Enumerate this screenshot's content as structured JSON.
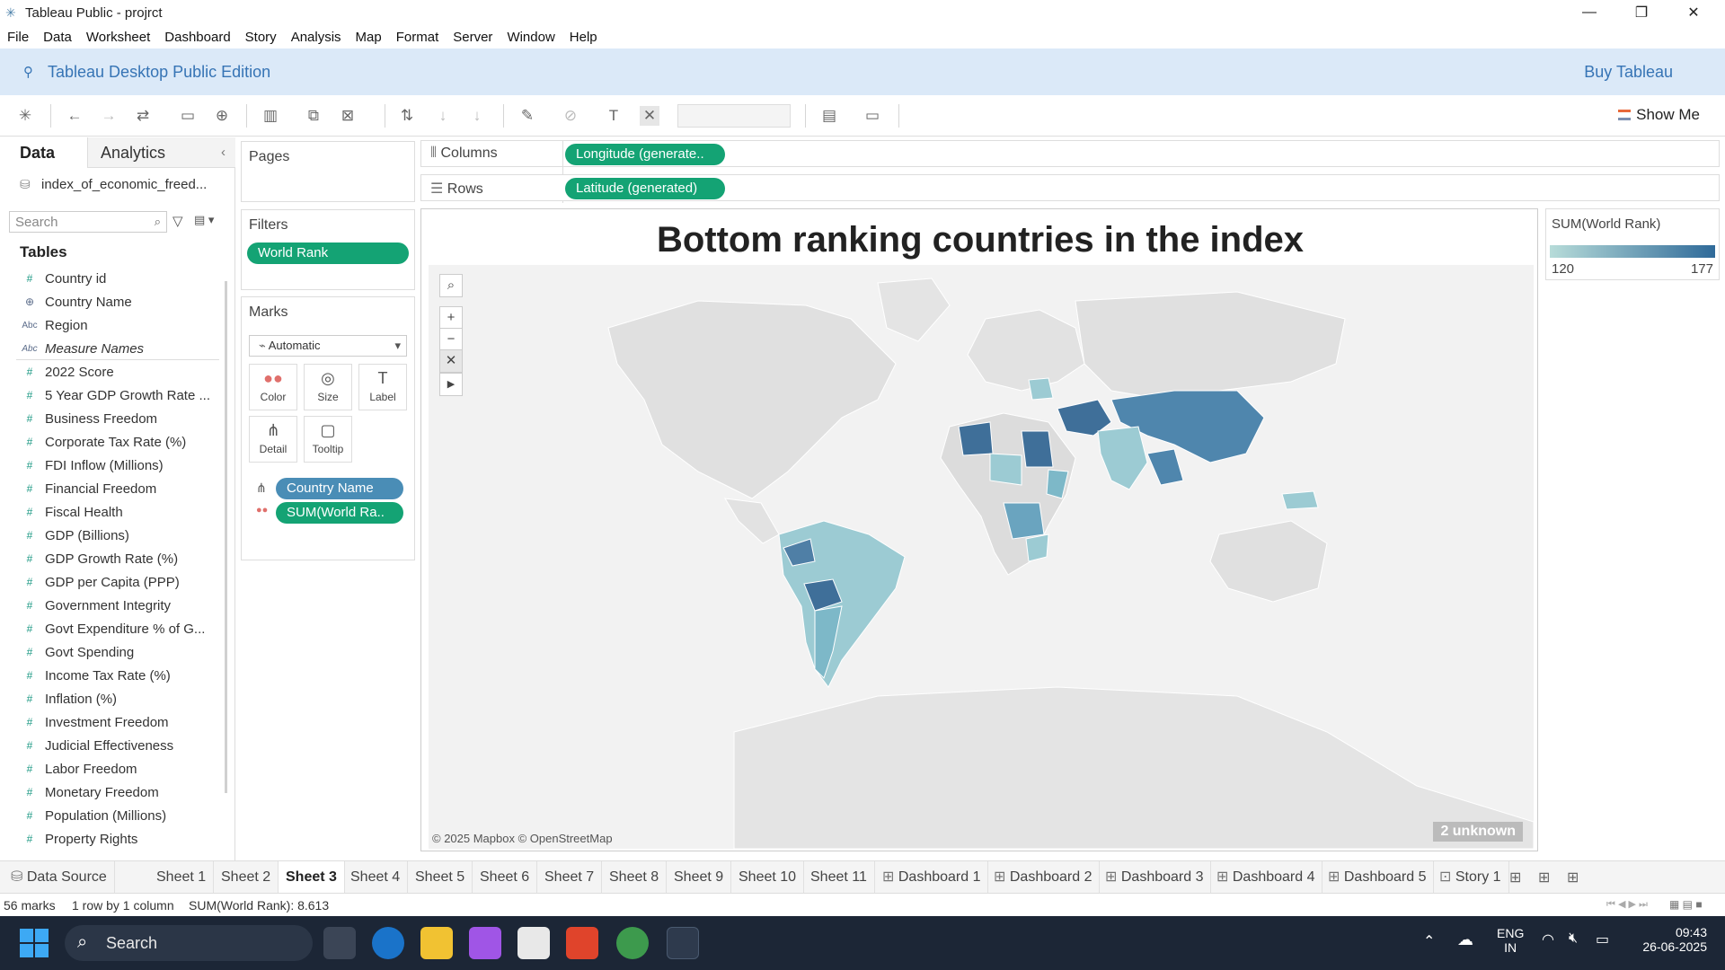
{
  "window": {
    "title": "Tableau Public - projrct"
  },
  "menu": [
    "File",
    "Data",
    "Worksheet",
    "Dashboard",
    "Story",
    "Analysis",
    "Map",
    "Format",
    "Server",
    "Window",
    "Help"
  ],
  "banner": {
    "edition": "Tableau Desktop Public Edition",
    "buy": "Buy Tableau"
  },
  "toolbar": {
    "show_me": "Show Me"
  },
  "datapane": {
    "tabs": [
      "Data",
      "Analytics"
    ],
    "source": "index_of_economic_freed...",
    "search_placeholder": "Search",
    "tables_label": "Tables",
    "dimensions": [
      {
        "icon": "hash",
        "name": "Country id"
      },
      {
        "icon": "globe",
        "name": "Country Name"
      },
      {
        "icon": "abc",
        "name": "Region"
      },
      {
        "icon": "abc",
        "name": "Measure Names"
      }
    ],
    "measures": [
      "2022 Score",
      "5 Year GDP Growth Rate ...",
      "Business Freedom",
      "Corporate Tax Rate (%)",
      "FDI Inflow (Millions)",
      "Financial Freedom",
      "Fiscal Health",
      "GDP (Billions)",
      "GDP Growth Rate (%)",
      "GDP per Capita (PPP)",
      "Government Integrity",
      "Govt Expenditure % of G...",
      "Govt Spending",
      "Income Tax Rate (%)",
      "Inflation (%)",
      "Investment Freedom",
      "Judicial Effectiveness",
      "Labor Freedom",
      "Monetary Freedom",
      "Population (Millions)",
      "Property Rights"
    ]
  },
  "pages": {
    "label": "Pages"
  },
  "filters": {
    "label": "Filters",
    "items": [
      "World Rank"
    ]
  },
  "marks": {
    "label": "Marks",
    "type": "Automatic",
    "buttons": [
      "Color",
      "Size",
      "Label",
      "Detail",
      "Tooltip"
    ],
    "pills": [
      "Country Name",
      "SUM(World Ra.."
    ]
  },
  "shelves": {
    "columns_label": "Columns",
    "columns_pill": "Longitude (generate..",
    "rows_label": "Rows",
    "rows_pill": "Latitude (generated)"
  },
  "view": {
    "title": "Bottom ranking countries in the index",
    "unknown": "2 unknown",
    "copyright": "© 2025 Mapbox © OpenStreetMap"
  },
  "legend": {
    "title": "SUM(World Rank)",
    "min": "120",
    "max": "177",
    "color_low": "#b7dcd9",
    "color_high": "#2f6a99"
  },
  "sheet_tabs": [
    "Data Source",
    "Sheet 1",
    "Sheet 2",
    "Sheet 3",
    "Sheet 4",
    "Sheet 5",
    "Sheet 6",
    "Sheet 7",
    "Sheet 8",
    "Sheet 9",
    "Sheet 10",
    "Sheet 11",
    "Dashboard 1",
    "Dashboard 2",
    "Dashboard 3",
    "Dashboard 4",
    "Dashboard 5",
    "Story 1"
  ],
  "active_tab": "Sheet 3",
  "status": {
    "marks": "56 marks",
    "dims": "1 row by 1 column",
    "sum": "SUM(World Rank): 8.613"
  },
  "taskbar": {
    "search": "Search",
    "lang1": "ENG",
    "lang2": "IN",
    "time": "09:43",
    "date": "26-06-2025"
  }
}
